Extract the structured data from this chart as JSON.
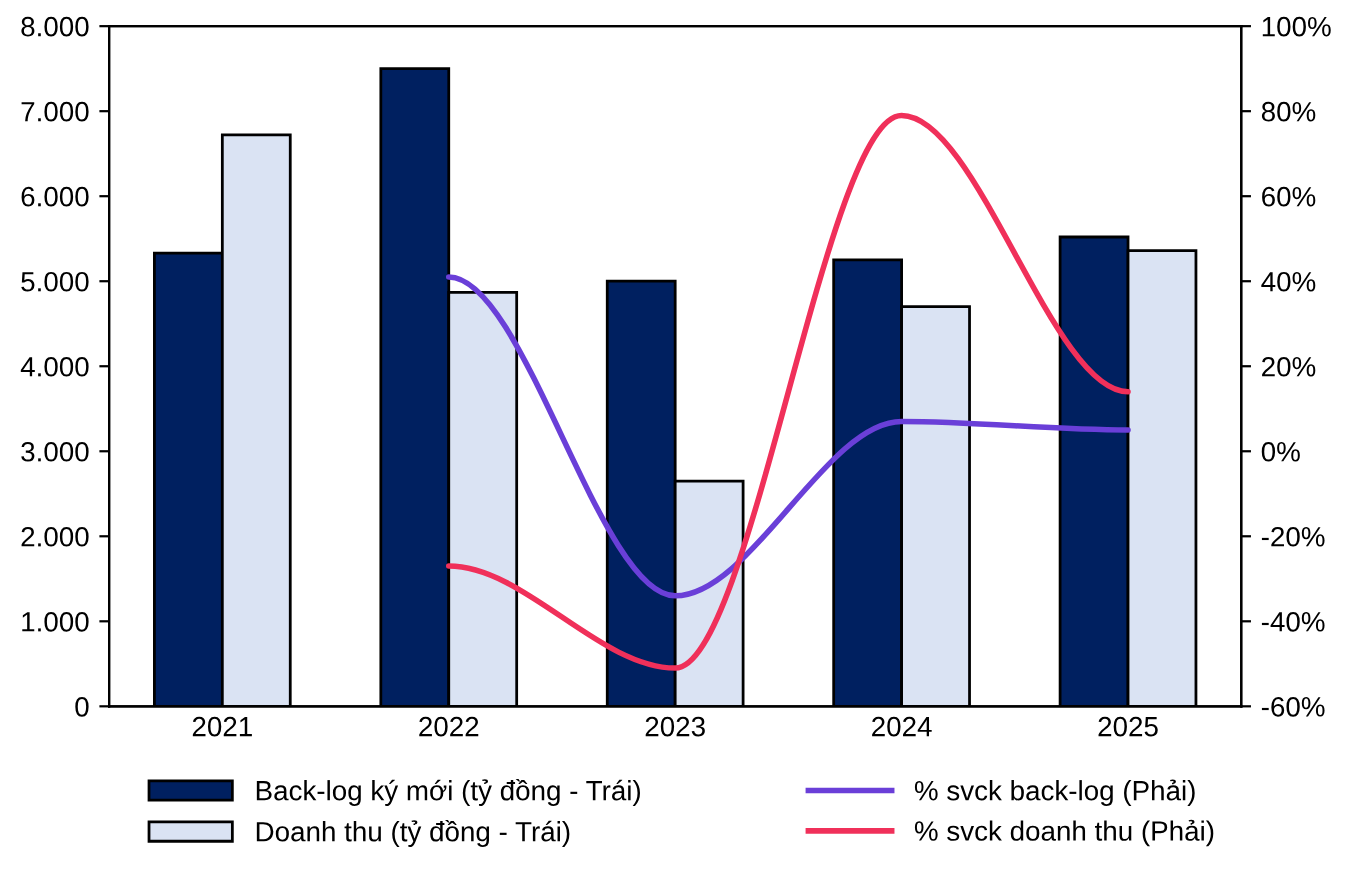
{
  "chart_data": {
    "type": "bar",
    "categories": [
      "2021",
      "2022",
      "2023",
      "2024",
      "2025"
    ],
    "series": [
      {
        "name": "Back-log ký mới (tỷ đồng - Trái)",
        "color": "#002060",
        "values": [
          5330,
          7500,
          5000,
          5250,
          5520
        ]
      },
      {
        "name": "Doanh thu (tỷ đồng - Trái)",
        "color": "#dae3f3",
        "values": [
          6720,
          4870,
          2650,
          4700,
          5360
        ]
      },
      {
        "name": "% svck back-log (Phải)",
        "type": "line",
        "axis": "y2",
        "color": "#6a3fd8",
        "values": [
          null,
          41,
          -34,
          7,
          5
        ]
      },
      {
        "name": "% svck doanh thu (Phải)",
        "type": "line",
        "axis": "y2",
        "color": "#f0305a",
        "values": [
          null,
          -27,
          -51,
          79,
          14
        ]
      }
    ],
    "ylim": [
      0,
      8000
    ],
    "yticks": [
      {
        "value": 0,
        "label": "0"
      },
      {
        "value": 1000,
        "label": "1.000"
      },
      {
        "value": 2000,
        "label": "2.000"
      },
      {
        "value": 3000,
        "label": "3.000"
      },
      {
        "value": 4000,
        "label": "4.000"
      },
      {
        "value": 5000,
        "label": "5.000"
      },
      {
        "value": 6000,
        "label": "6.000"
      },
      {
        "value": 7000,
        "label": "7.000"
      },
      {
        "value": 8000,
        "label": "8.000"
      }
    ],
    "y2lim": [
      -60,
      100
    ],
    "y2ticks": [
      {
        "value": -60,
        "label": "-60%"
      },
      {
        "value": -40,
        "label": "-40%"
      },
      {
        "value": -20,
        "label": "-20%"
      },
      {
        "value": 0,
        "label": "0%"
      },
      {
        "value": 20,
        "label": "20%"
      },
      {
        "value": 40,
        "label": "40%"
      },
      {
        "value": 60,
        "label": "60%"
      },
      {
        "value": 80,
        "label": "80%"
      },
      {
        "value": 100,
        "label": "100%"
      }
    ],
    "grid": false,
    "legend": "bottom",
    "marker": "none",
    "line_style": "solid"
  }
}
